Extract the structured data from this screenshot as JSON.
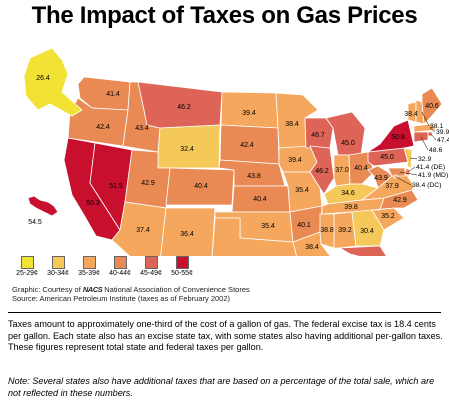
{
  "title": "The Impact of Taxes on Gas Prices",
  "legend": [
    {
      "label": "25-29¢",
      "color": "#f2e234"
    },
    {
      "label": "30-34¢",
      "color": "#f5c85a"
    },
    {
      "label": "35-39¢",
      "color": "#f5a75d"
    },
    {
      "label": "40-44¢",
      "color": "#e98a55"
    },
    {
      "label": "45-49¢",
      "color": "#de6457"
    },
    {
      "label": "50-55¢",
      "color": "#c8102e"
    }
  ],
  "credits": {
    "line1_prefix": "Graphic: Courtesy of",
    "logo": "NACS",
    "line1_suffix": "National Association of Convenience Stores",
    "line2": "Source: American Petroleum Institute  (taxes as of February 2002)"
  },
  "description": "Taxes amount to approximately one-third of the cost of a gallon of gas. The federal excise tax is 18.4 cents per gallon. Each state also has an excise state tax, with some states also having additional per-gallon taxes. These figures represent total state and federal taxes per gallon.",
  "note": "Note: Several states also have additional taxes that are based on a percentage of the total sale, which are not reflected in these numbers.",
  "chart_data": {
    "type": "choropleth",
    "title": "The Impact of Taxes on Gas Prices",
    "unit": "cents per gallon",
    "states": [
      {
        "name": "WA",
        "value": 41.4
      },
      {
        "name": "OR",
        "value": 42.4
      },
      {
        "name": "ID",
        "value": 43.4
      },
      {
        "name": "MT",
        "value": 46.2
      },
      {
        "name": "WY",
        "value": 32.4
      },
      {
        "name": "CA",
        "value": 50.3
      },
      {
        "name": "NV",
        "value": 51.5
      },
      {
        "name": "UT",
        "value": 42.9
      },
      {
        "name": "CO",
        "value": 40.4
      },
      {
        "name": "AZ",
        "value": 37.4
      },
      {
        "name": "NM",
        "value": 36.4
      },
      {
        "name": "ND",
        "value": 39.4
      },
      {
        "name": "SD",
        "value": 42.4
      },
      {
        "name": "NE",
        "value": 43.8
      },
      {
        "name": "KS",
        "value": 40.4
      },
      {
        "name": "OK",
        "value": 35.4
      },
      {
        "name": "TX",
        "value": 38.4
      },
      {
        "name": "MN",
        "value": 38.4
      },
      {
        "name": "IA",
        "value": 39.4
      },
      {
        "name": "MO",
        "value": 35.4
      },
      {
        "name": "AR",
        "value": 40.1
      },
      {
        "name": "LA",
        "value": 38.4
      },
      {
        "name": "WI",
        "value": 46.7
      },
      {
        "name": "IL",
        "value": 46.2
      },
      {
        "name": "MI",
        "value": 45.0
      },
      {
        "name": "IN",
        "value": 37.0
      },
      {
        "name": "OH",
        "value": 40.4
      },
      {
        "name": "KY",
        "value": 34.6
      },
      {
        "name": "TN",
        "value": 39.8
      },
      {
        "name": "MS",
        "value": 38.8
      },
      {
        "name": "AL",
        "value": 39.2
      },
      {
        "name": "GA",
        "value": 30.4
      },
      {
        "name": "FL",
        "value": 45.0
      },
      {
        "name": "SC",
        "value": 35.2
      },
      {
        "name": "NC",
        "value": 42.9
      },
      {
        "name": "VA",
        "value": 37.9
      },
      {
        "name": "WV",
        "value": 43.9
      },
      {
        "name": "PA",
        "value": 45.0
      },
      {
        "name": "NY",
        "value": 50.8
      },
      {
        "name": "VT",
        "value": 38.4
      },
      {
        "name": "NH",
        "value": 38.1
      },
      {
        "name": "ME",
        "value": 40.6
      },
      {
        "name": "MA",
        "value": 39.9
      },
      {
        "name": "RI",
        "value": 47.4
      },
      {
        "name": "CT",
        "value": 48.6
      },
      {
        "name": "NJ",
        "value": 32.9
      },
      {
        "name": "DE",
        "value": 41.4
      },
      {
        "name": "MD",
        "value": 41.9
      },
      {
        "name": "DC",
        "value": 38.4
      },
      {
        "name": "AK",
        "value": 26.4
      },
      {
        "name": "HI",
        "value": 54.5
      }
    ],
    "callouts": [
      {
        "state": "NH",
        "label": "38.1"
      },
      {
        "state": "MA",
        "label": "39.9"
      },
      {
        "state": "RI",
        "label": "47.4 (RI)"
      },
      {
        "state": "CT",
        "label": "48.6"
      },
      {
        "state": "NJ",
        "label": "32.9"
      },
      {
        "state": "DE",
        "label": "41.4 (DE)"
      },
      {
        "state": "MD",
        "label": "41.9 (MD)"
      },
      {
        "state": "DC",
        "label": "38.4 (DC)"
      }
    ]
  }
}
